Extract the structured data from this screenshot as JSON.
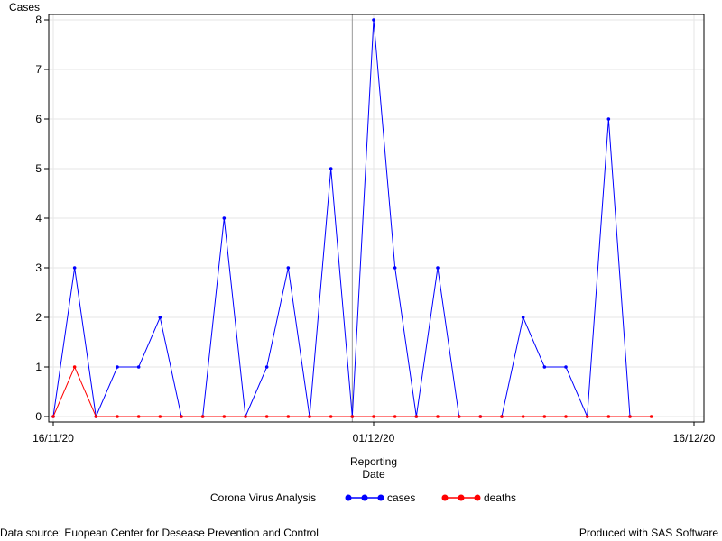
{
  "chart_data": {
    "type": "line",
    "ylabel": "Cases",
    "xlabel": [
      "Reporting",
      "Date"
    ],
    "ylim": [
      0,
      8
    ],
    "yticks": [
      0,
      1,
      2,
      3,
      4,
      5,
      6,
      7,
      8
    ],
    "xlim": [
      "2020-11-16",
      "2020-12-16"
    ],
    "xticks": [
      "2020-11-16",
      "2020-12-01",
      "2020-12-16"
    ],
    "xticklabels": [
      "16/11/20",
      "01/12/20",
      "16/12/20"
    ],
    "reference_line_x": "2020-11-30",
    "grid": true,
    "legend_placement": "bottom",
    "legend_title": "Corona Virus Analysis",
    "series": [
      {
        "name": "cases",
        "color": "#0000ff",
        "x": [
          "2020-11-16",
          "2020-11-17",
          "2020-11-18",
          "2020-11-19",
          "2020-11-20",
          "2020-11-21",
          "2020-11-22",
          "2020-11-23",
          "2020-11-24",
          "2020-11-25",
          "2020-11-26",
          "2020-11-27",
          "2020-11-28",
          "2020-11-29",
          "2020-11-30",
          "2020-12-01",
          "2020-12-02",
          "2020-12-03",
          "2020-12-04",
          "2020-12-05",
          "2020-12-06",
          "2020-12-07",
          "2020-12-08",
          "2020-12-09",
          "2020-12-10",
          "2020-12-11",
          "2020-12-12",
          "2020-12-13"
        ],
        "values": [
          0,
          3,
          0,
          1,
          1,
          2,
          0,
          0,
          4,
          0,
          1,
          3,
          0,
          5,
          0,
          8,
          3,
          0,
          3,
          0,
          0,
          0,
          2,
          1,
          1,
          0,
          6,
          0
        ]
      },
      {
        "name": "deaths",
        "color": "#ff0000",
        "x": [
          "2020-11-16",
          "2020-11-17",
          "2020-11-18",
          "2020-11-19",
          "2020-11-20",
          "2020-11-21",
          "2020-11-22",
          "2020-11-23",
          "2020-11-24",
          "2020-11-25",
          "2020-11-26",
          "2020-11-27",
          "2020-11-28",
          "2020-11-29",
          "2020-11-30",
          "2020-12-01",
          "2020-12-02",
          "2020-12-03",
          "2020-12-04",
          "2020-12-05",
          "2020-12-06",
          "2020-12-07",
          "2020-12-08",
          "2020-12-09",
          "2020-12-10",
          "2020-12-11",
          "2020-12-12",
          "2020-12-13",
          "2020-12-14"
        ],
        "values": [
          0,
          1,
          0,
          0,
          0,
          0,
          0,
          0,
          0,
          0,
          0,
          0,
          0,
          0,
          0,
          0,
          0,
          0,
          0,
          0,
          0,
          0,
          0,
          0,
          0,
          0,
          0,
          0,
          0
        ]
      }
    ]
  },
  "footer": {
    "left": "Data source: Euopean Center for Desease Prevention and Control",
    "right": "Produced with SAS Software"
  }
}
